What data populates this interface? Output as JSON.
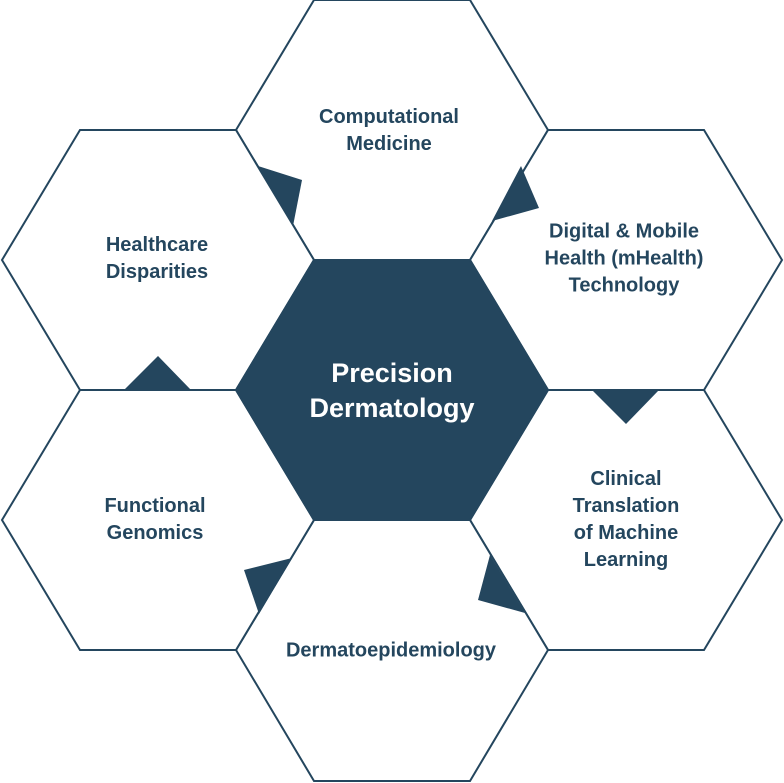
{
  "center": {
    "title": "Precision\nDermatology"
  },
  "areas": [
    {
      "id": "top",
      "label": "Computational\nMedicine"
    },
    {
      "id": "upper-right",
      "label": "Digital & Mobile\nHealth (mHealth)\nTechnology"
    },
    {
      "id": "lower-right",
      "label": "Clinical Translation\nof Machine Learning"
    },
    {
      "id": "bottom",
      "label": "Dermatoepidemiology"
    },
    {
      "id": "lower-left",
      "label": "Functional\nGenomics"
    },
    {
      "id": "upper-left",
      "label": "Healthcare\nDisparities"
    }
  ],
  "colors": {
    "primary": "#24465e",
    "background": "#ffffff"
  }
}
